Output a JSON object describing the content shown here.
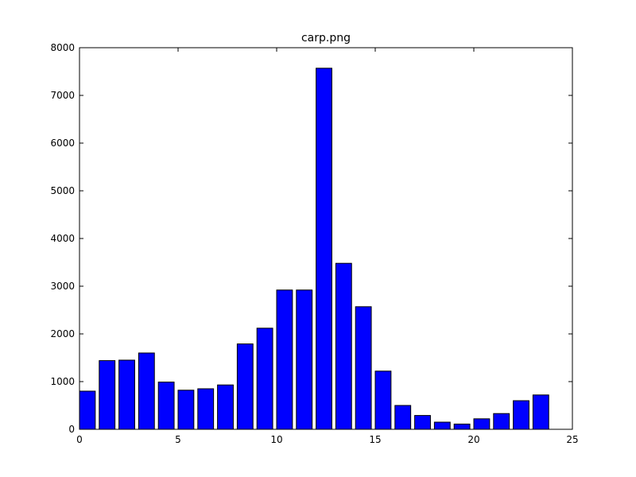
{
  "chart_data": {
    "type": "bar",
    "title": "carp.png",
    "xlabel": "",
    "ylabel": "",
    "xlim": [
      0,
      25
    ],
    "ylim": [
      0,
      8000
    ],
    "x_ticks": [
      0,
      5,
      10,
      15,
      20,
      25
    ],
    "y_ticks": [
      0,
      1000,
      2000,
      3000,
      4000,
      5000,
      6000,
      7000,
      8000
    ],
    "grid": false,
    "bar_width": 0.8,
    "bar_color": "#0000ff",
    "edge_color": "#000000",
    "series": [
      {
        "x": [
          0,
          1,
          2,
          3,
          4,
          5,
          6,
          7,
          8,
          9,
          10,
          11,
          12,
          13,
          14,
          15,
          16,
          17,
          18,
          19,
          20,
          21,
          22,
          23
        ],
        "values": [
          800,
          1440,
          1450,
          1600,
          990,
          820,
          850,
          930,
          1790,
          2120,
          2920,
          2920,
          7570,
          3480,
          2570,
          1220,
          500,
          290,
          150,
          110,
          220,
          330,
          600,
          720
        ]
      }
    ]
  }
}
